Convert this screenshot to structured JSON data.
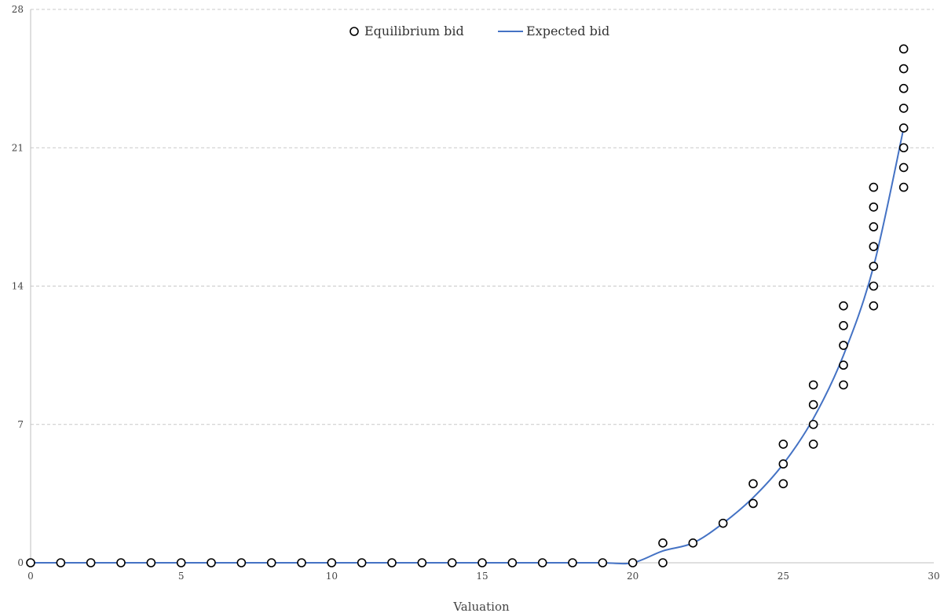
{
  "chart_data": {
    "type": "scatter",
    "title": "",
    "xlabel": "Valuation",
    "ylabel": "",
    "xlim": [
      0,
      30
    ],
    "ylim": [
      0,
      28
    ],
    "xticks": [
      0,
      5,
      10,
      15,
      20,
      25,
      30
    ],
    "yticks": [
      0,
      7,
      14,
      21,
      28
    ],
    "grid": "horizontal dashed",
    "legend_position": "top-center",
    "series": [
      {
        "name": "Equilibrium bid",
        "kind": "markers",
        "marker": "open-circle",
        "color": "#000000",
        "points": [
          [
            0,
            0
          ],
          [
            1,
            0
          ],
          [
            2,
            0
          ],
          [
            3,
            0
          ],
          [
            4,
            0
          ],
          [
            5,
            0
          ],
          [
            6,
            0
          ],
          [
            7,
            0
          ],
          [
            8,
            0
          ],
          [
            9,
            0
          ],
          [
            10,
            0
          ],
          [
            11,
            0
          ],
          [
            12,
            0
          ],
          [
            13,
            0
          ],
          [
            14,
            0
          ],
          [
            15,
            0
          ],
          [
            16,
            0
          ],
          [
            17,
            0
          ],
          [
            18,
            0
          ],
          [
            19,
            0
          ],
          [
            20,
            0
          ],
          [
            21,
            0
          ],
          [
            21,
            1
          ],
          [
            22,
            1
          ],
          [
            23,
            2
          ],
          [
            24,
            3
          ],
          [
            24,
            4
          ],
          [
            25,
            4
          ],
          [
            25,
            5
          ],
          [
            25,
            6
          ],
          [
            26,
            6
          ],
          [
            26,
            7
          ],
          [
            26,
            8
          ],
          [
            26,
            9
          ],
          [
            27,
            9
          ],
          [
            27,
            10
          ],
          [
            27,
            11
          ],
          [
            27,
            12
          ],
          [
            27,
            13
          ],
          [
            28,
            13
          ],
          [
            28,
            14
          ],
          [
            28,
            15
          ],
          [
            28,
            16
          ],
          [
            28,
            17
          ],
          [
            28,
            18
          ],
          [
            28,
            19
          ],
          [
            29,
            19
          ],
          [
            29,
            20
          ],
          [
            29,
            21
          ],
          [
            29,
            22
          ],
          [
            29,
            23
          ],
          [
            29,
            24
          ],
          [
            29,
            25
          ],
          [
            29,
            26
          ]
        ]
      },
      {
        "name": "Expected bid",
        "kind": "line",
        "color": "#4472C4",
        "x": [
          0,
          1,
          2,
          3,
          4,
          5,
          6,
          7,
          8,
          9,
          10,
          11,
          12,
          13,
          14,
          15,
          16,
          17,
          18,
          19,
          20,
          21,
          22,
          23,
          24,
          25,
          26,
          27,
          28,
          29
        ],
        "y": [
          0,
          0,
          0,
          0,
          0,
          0,
          0,
          0,
          0,
          0,
          0,
          0,
          0,
          0,
          0,
          0,
          0,
          0,
          0,
          0,
          0,
          0.6,
          1,
          2,
          3.3,
          5,
          7.3,
          10.5,
          15,
          22
        ]
      }
    ]
  }
}
